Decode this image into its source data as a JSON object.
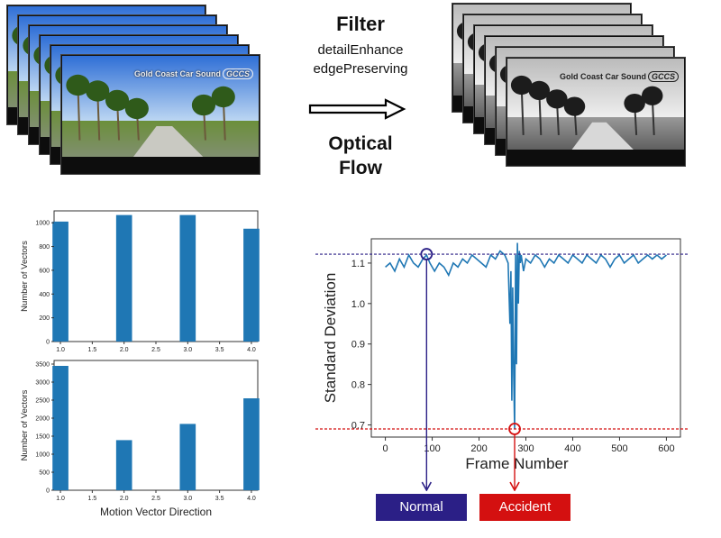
{
  "brand": {
    "name": "Gold Coast Car Sound",
    "logo": "GCCS"
  },
  "pipeline": {
    "filter_title": "Filter",
    "filter_methods": [
      "detailEnhance",
      "edgePreserving"
    ],
    "flow_title_lines": [
      "Optical",
      "Flow"
    ]
  },
  "labels": {
    "normal": {
      "text": "Normal",
      "color": "#2b1f86"
    },
    "accident": {
      "text": "Accident",
      "color": "#d41010"
    }
  },
  "chart_data": [
    {
      "type": "bar",
      "x": [
        1.0,
        2.0,
        3.0,
        4.0
      ],
      "values": [
        1010,
        1065,
        1065,
        950
      ],
      "ylabel": "Number of Vectors",
      "xlabel": "",
      "xlim": [
        0.9,
        4.1
      ],
      "ylim": [
        0,
        1100
      ],
      "xticks": [
        "1.0",
        "1.5",
        "2.0",
        "2.5",
        "3.0",
        "3.5",
        "4.0"
      ],
      "xtick_values": [
        1.0,
        1.5,
        2.0,
        2.5,
        3.0,
        3.5,
        4.0
      ],
      "yticks": [
        0,
        200,
        400,
        600,
        800,
        1000
      ],
      "color": "#1f77b4"
    },
    {
      "type": "bar",
      "x": [
        1.0,
        2.0,
        3.0,
        4.0
      ],
      "values": [
        3450,
        1390,
        1840,
        2550
      ],
      "ylabel": "Number of Vectors",
      "xlabel": "Motion Vector Direction",
      "xlim": [
        0.9,
        4.1
      ],
      "ylim": [
        0,
        3600
      ],
      "xticks": [
        "1.0",
        "1.5",
        "2.0",
        "2.5",
        "3.0",
        "3.5",
        "4.0"
      ],
      "xtick_values": [
        1.0,
        1.5,
        2.0,
        2.5,
        3.0,
        3.5,
        4.0
      ],
      "yticks": [
        0,
        500,
        1000,
        1500,
        2000,
        2500,
        3000,
        3500
      ],
      "color": "#1f77b4"
    },
    {
      "type": "line",
      "xlabel": "Frame Number",
      "ylabel": "Standard Deviation",
      "xlim": [
        -30,
        630
      ],
      "ylim": [
        0.67,
        1.16
      ],
      "xticks": [
        0,
        100,
        200,
        300,
        400,
        500,
        600
      ],
      "yticks": [
        0.7,
        0.8,
        0.9,
        1.0,
        1.1
      ],
      "ytick_labels": [
        "0.7",
        "0.8",
        "0.9",
        "1.0",
        "1.1"
      ],
      "color": "#1f77b4",
      "threshold_high": 1.122,
      "threshold_low": 0.69,
      "normal_marker": {
        "x": 88,
        "y": 1.122
      },
      "accident_marker": {
        "x": 276,
        "y": 0.69
      },
      "series_x": [
        0,
        10,
        20,
        30,
        40,
        50,
        60,
        70,
        80,
        88,
        95,
        105,
        115,
        125,
        135,
        145,
        155,
        165,
        175,
        185,
        195,
        205,
        215,
        225,
        235,
        245,
        255,
        262,
        266,
        268,
        270,
        272,
        274,
        276,
        278,
        280,
        282,
        284,
        286,
        288,
        290,
        295,
        300,
        310,
        320,
        330,
        340,
        350,
        360,
        370,
        380,
        390,
        400,
        410,
        420,
        430,
        440,
        450,
        460,
        470,
        480,
        490,
        500,
        510,
        520,
        530,
        540,
        550,
        560,
        570,
        580,
        590,
        600
      ],
      "series_y": [
        1.09,
        1.1,
        1.08,
        1.11,
        1.09,
        1.12,
        1.1,
        1.09,
        1.11,
        1.12,
        1.1,
        1.08,
        1.1,
        1.09,
        1.07,
        1.1,
        1.09,
        1.11,
        1.1,
        1.12,
        1.11,
        1.1,
        1.09,
        1.12,
        1.11,
        1.13,
        1.12,
        1.1,
        0.95,
        1.08,
        0.76,
        1.04,
        0.82,
        0.69,
        1.12,
        0.85,
        1.15,
        1.0,
        1.13,
        1.1,
        1.12,
        1.08,
        1.11,
        1.1,
        1.12,
        1.11,
        1.09,
        1.11,
        1.1,
        1.12,
        1.11,
        1.1,
        1.12,
        1.11,
        1.1,
        1.12,
        1.11,
        1.1,
        1.12,
        1.11,
        1.09,
        1.11,
        1.12,
        1.1,
        1.11,
        1.12,
        1.1,
        1.11,
        1.12,
        1.11,
        1.12,
        1.11,
        1.12
      ]
    }
  ]
}
